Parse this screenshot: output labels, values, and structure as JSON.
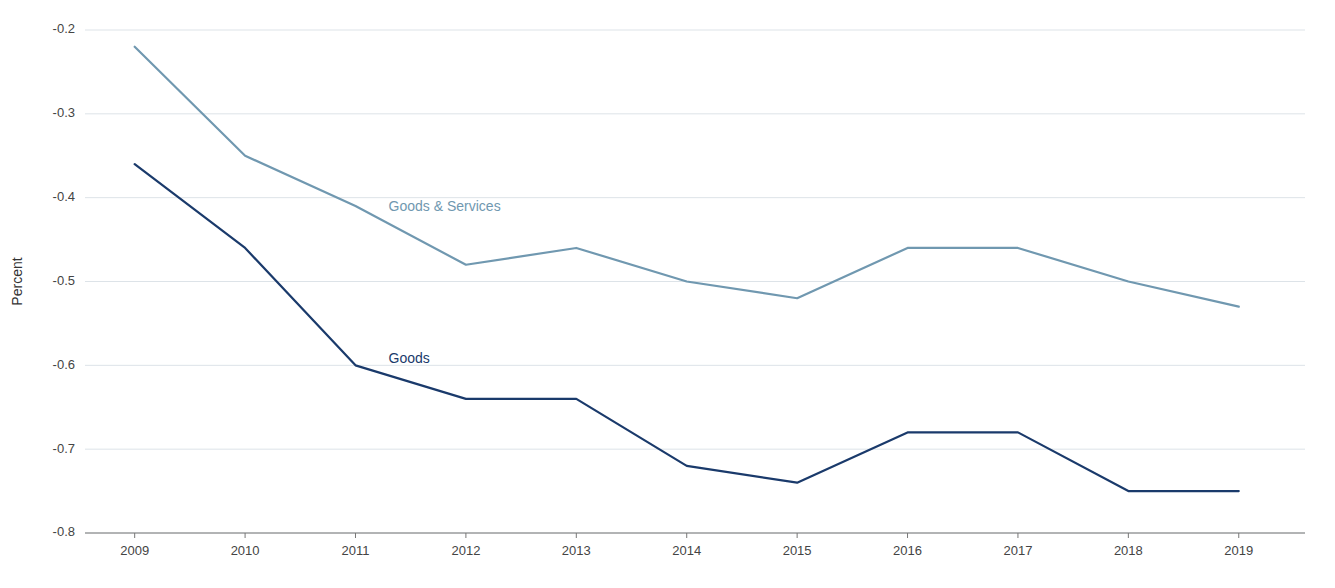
{
  "chart_data": {
    "type": "line",
    "x": [
      2009,
      2010,
      2011,
      2012,
      2013,
      2014,
      2015,
      2016,
      2017,
      2018,
      2019
    ],
    "series": [
      {
        "name": "Goods & Services",
        "color": "#7098b0",
        "values": [
          -0.22,
          -0.35,
          -0.41,
          -0.48,
          -0.46,
          -0.5,
          -0.52,
          -0.46,
          -0.46,
          -0.5,
          -0.53
        ]
      },
      {
        "name": "Goods",
        "color": "#1a3a6b",
        "values": [
          -0.36,
          -0.46,
          -0.6,
          -0.64,
          -0.64,
          -0.72,
          -0.74,
          -0.68,
          -0.68,
          -0.75,
          -0.75
        ]
      }
    ],
    "y_label": "Percent",
    "xlim": [
      2008.55,
      2019.6
    ],
    "xticks": [
      2009,
      2010,
      2011,
      2012,
      2013,
      2014,
      2015,
      2016,
      2017,
      2018,
      2019
    ],
    "ylim": [
      -0.8,
      -0.2
    ],
    "yticks": [
      -0.8,
      -0.7,
      -0.6,
      -0.5,
      -0.4,
      -0.3,
      -0.2
    ],
    "grid": true
  }
}
